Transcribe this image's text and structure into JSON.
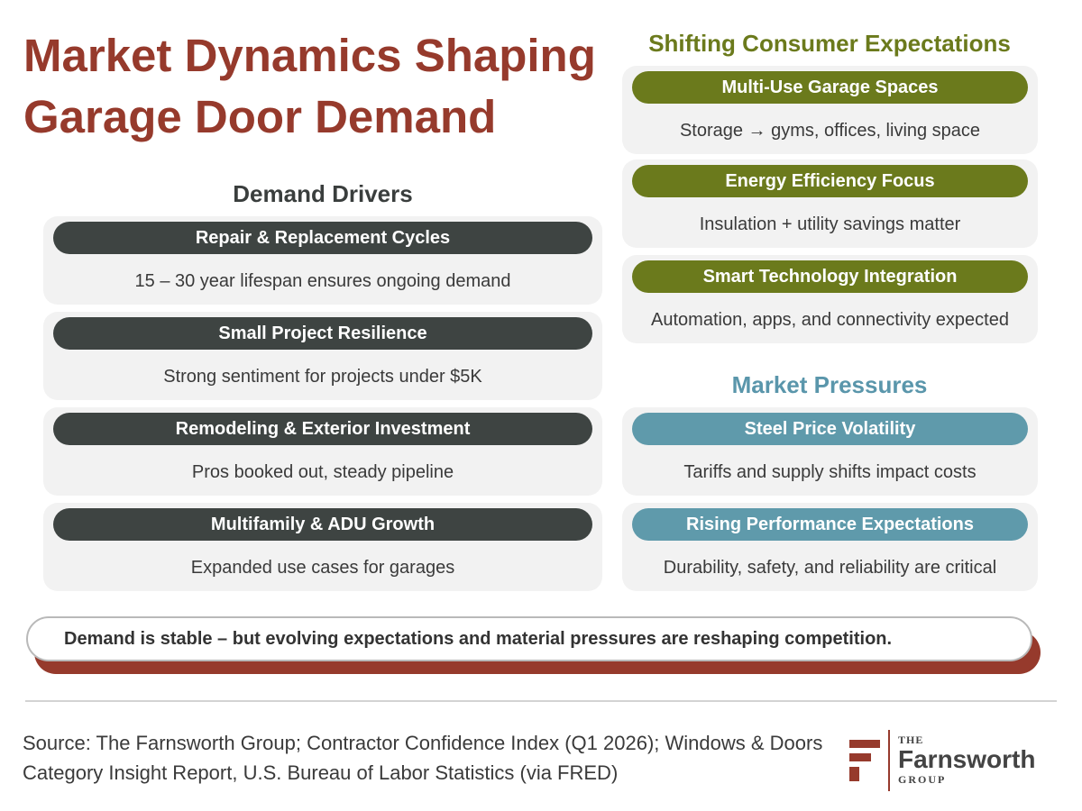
{
  "title": "Market Dynamics Shaping Garage Door Demand",
  "demand_drivers": {
    "heading": "Demand Drivers",
    "items": [
      {
        "label": "Repair & Replacement Cycles",
        "desc": "15 – 30 year lifespan ensures ongoing demand"
      },
      {
        "label": "Small Project Resilience",
        "desc": "Strong sentiment for projects under $5K"
      },
      {
        "label": "Remodeling & Exterior Investment",
        "desc": "Pros booked out, steady pipeline"
      },
      {
        "label": "Multifamily & ADU Growth",
        "desc": "Expanded use cases for garages"
      }
    ]
  },
  "consumer_expectations": {
    "heading": "Shifting Consumer Expectations",
    "items": [
      {
        "label": "Multi-Use Garage Spaces",
        "desc": "Storage → gyms, offices, living space"
      },
      {
        "label": "Energy Efficiency Focus",
        "desc": "Insulation + utility savings matter"
      },
      {
        "label": "Smart Technology Integration",
        "desc": "Automation, apps, and connectivity expected"
      }
    ]
  },
  "market_pressures": {
    "heading": "Market Pressures",
    "items": [
      {
        "label": "Steel Price Volatility",
        "desc": "Tariffs and supply shifts impact costs"
      },
      {
        "label": "Rising Performance Expectations",
        "desc": "Durability, safety, and reliability are critical"
      }
    ]
  },
  "callout": "Demand is stable – but evolving expectations and material pressures are reshaping competition.",
  "source": "Source: The Farnsworth Group; Contractor Confidence Index (Q1 2026); Windows & Doors Category Insight Report, U.S. Bureau of Labor Statistics (via FRED)",
  "logo": {
    "the": "THE",
    "name": "Farnsworth",
    "group": "GROUP"
  },
  "colors": {
    "brand_red": "#963a2c",
    "olive": "#6b7a1c",
    "teal": "#5f9aab",
    "charcoal": "#3e4442"
  }
}
